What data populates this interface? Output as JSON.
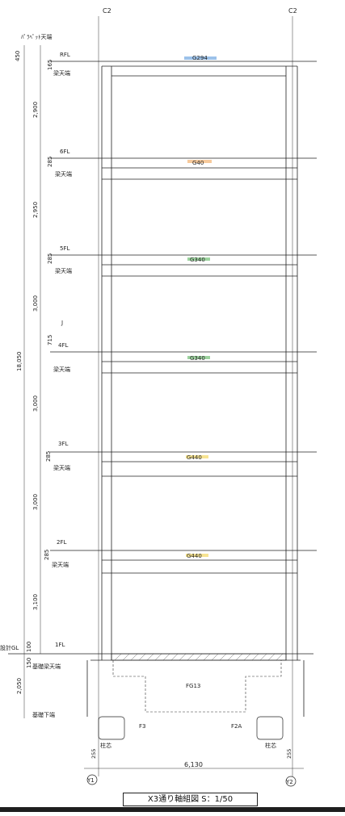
{
  "drawing": {
    "title": "X3通り軸組図 S：1/50",
    "axis_top_left": "C2",
    "axis_top_right": "C2",
    "axis_bottom_left": "Y1",
    "axis_bottom_right": "Y2",
    "parapet_label": "ﾊﾟﾗﾍﾟｯﾄ天端",
    "total_height": "18,050",
    "span_width": "6,130",
    "design_gl": "設計GL",
    "foundation_beam_top": "基礎梁天端",
    "foundation_beam_bottom": "基礎下端",
    "foundation_beam_name": "FG13",
    "footing_left": "F3",
    "footing_right": "F2A",
    "column_center_left": "柱芯",
    "column_center_right": "柱芯",
    "edge_left": "255",
    "edge_right": "255",
    "beam_top_label": "梁天端",
    "j_mark": "J",
    "accent_colors": {
      "blue": "#4a90d9",
      "orange": "#f2a65a",
      "green": "#4caf50",
      "yellow": "#f2d24a",
      "dark": "#1e1e1e"
    }
  },
  "floors": [
    {
      "name": "RFL",
      "beam": "G294",
      "offset": "165",
      "story_height": "2,900"
    },
    {
      "name": "6FL",
      "beam": "G40",
      "offset": "285",
      "story_height": "2,950"
    },
    {
      "name": "5FL",
      "beam": "G340",
      "offset": "285",
      "story_height": "3,000"
    },
    {
      "name": "4FL",
      "beam": "G340",
      "offset": "715",
      "story_height": "3,000"
    },
    {
      "name": "3FL",
      "beam": "G440",
      "offset": "285",
      "story_height": "3,000"
    },
    {
      "name": "2FL",
      "beam": "G440",
      "offset": "285",
      "story_height": "3,100"
    },
    {
      "name": "1FL",
      "beam": "",
      "offset": "100",
      "story_height": "2,050"
    }
  ],
  "left_dims": {
    "parapet_height": "450",
    "gl_offset": "150"
  }
}
